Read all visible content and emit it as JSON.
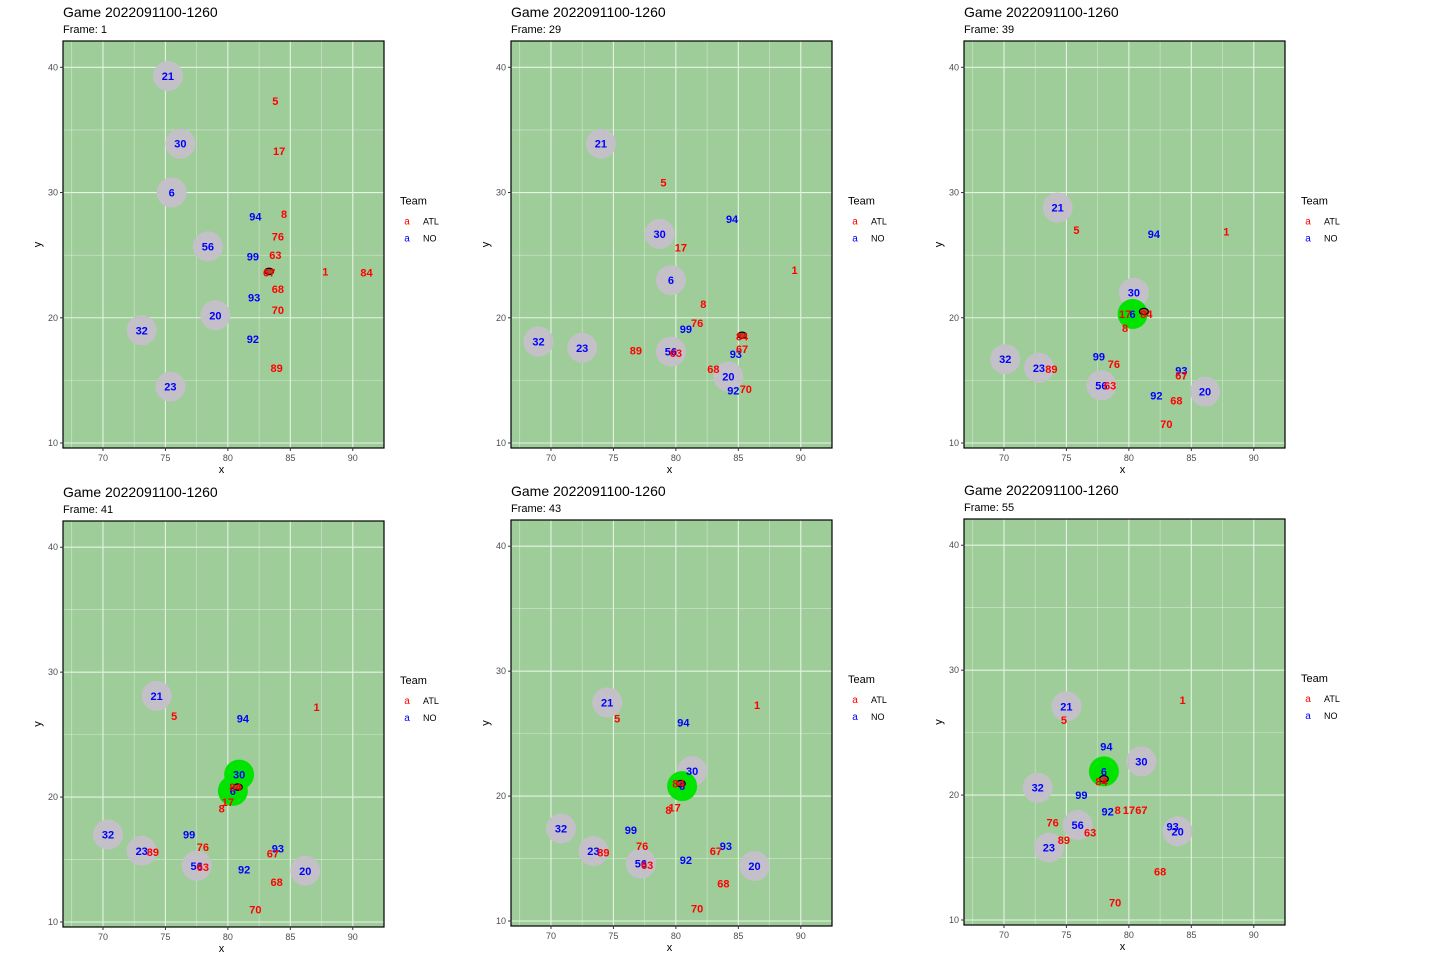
{
  "colors": {
    "field": "#9ecd9a",
    "grid": "#e6f2e4",
    "halo": "#c4c0c8",
    "carrier": "#00e400",
    "ATL": "#ff0000",
    "NO": "#0000ff",
    "ball": "#a0522d"
  },
  "chart_data": [
    {
      "type": "scatter",
      "title": "Game 2022091100-1260",
      "subtitle": "Frame: 1",
      "xlabel": "x",
      "ylabel": "y",
      "xlim": [
        66.8,
        92.5
      ],
      "ylim": [
        9.6,
        42.1
      ],
      "xticks": [
        70,
        75,
        80,
        85,
        90
      ],
      "yticks": [
        10,
        20,
        30,
        40
      ],
      "legend": {
        "title": "Team",
        "position": "right",
        "entries": [
          "ATL",
          "NO"
        ]
      },
      "ball": [
        83.3,
        23.7
      ],
      "players": [
        {
          "team": "NO",
          "jersey": "21",
          "x": 75.2,
          "y": 39.3,
          "halo": true
        },
        {
          "team": "NO",
          "jersey": "30",
          "x": 76.2,
          "y": 33.9,
          "halo": true
        },
        {
          "team": "NO",
          "jersey": "6",
          "x": 75.5,
          "y": 30.0,
          "halo": true
        },
        {
          "team": "NO",
          "jersey": "56",
          "x": 78.4,
          "y": 25.7,
          "halo": true
        },
        {
          "team": "NO",
          "jersey": "20",
          "x": 79.0,
          "y": 20.2,
          "halo": true
        },
        {
          "team": "NO",
          "jersey": "32",
          "x": 73.1,
          "y": 19.0,
          "halo": true
        },
        {
          "team": "NO",
          "jersey": "23",
          "x": 75.4,
          "y": 14.5,
          "halo": true
        },
        {
          "team": "NO",
          "jersey": "94",
          "x": 82.2,
          "y": 28.1
        },
        {
          "team": "NO",
          "jersey": "99",
          "x": 82.0,
          "y": 24.9
        },
        {
          "team": "NO",
          "jersey": "93",
          "x": 82.1,
          "y": 21.6
        },
        {
          "team": "NO",
          "jersey": "92",
          "x": 82.0,
          "y": 18.3
        },
        {
          "team": "ATL",
          "jersey": "5",
          "x": 83.8,
          "y": 37.3
        },
        {
          "team": "ATL",
          "jersey": "17",
          "x": 84.1,
          "y": 33.3
        },
        {
          "team": "ATL",
          "jersey": "8",
          "x": 84.5,
          "y": 28.3
        },
        {
          "team": "ATL",
          "jersey": "76",
          "x": 84.0,
          "y": 26.5
        },
        {
          "team": "ATL",
          "jersey": "63",
          "x": 83.8,
          "y": 25.0
        },
        {
          "team": "ATL",
          "jersey": "67",
          "x": 83.3,
          "y": 23.6
        },
        {
          "team": "ATL",
          "jersey": "68",
          "x": 84.0,
          "y": 22.3
        },
        {
          "team": "ATL",
          "jersey": "70",
          "x": 84.0,
          "y": 20.6
        },
        {
          "team": "ATL",
          "jersey": "89",
          "x": 83.9,
          "y": 16.0
        },
        {
          "team": "ATL",
          "jersey": "1",
          "x": 87.8,
          "y": 23.7
        },
        {
          "team": "ATL",
          "jersey": "84",
          "x": 91.1,
          "y": 23.6
        }
      ]
    },
    {
      "type": "scatter",
      "title": "Game 2022091100-1260",
      "subtitle": "Frame: 29",
      "xlabel": "x",
      "ylabel": "y",
      "xlim": [
        66.8,
        92.5
      ],
      "ylim": [
        9.6,
        42.1
      ],
      "xticks": [
        70,
        75,
        80,
        85,
        90
      ],
      "yticks": [
        10,
        20,
        30,
        40
      ],
      "legend": {
        "title": "Team",
        "position": "right",
        "entries": [
          "ATL",
          "NO"
        ]
      },
      "ball": [
        85.3,
        18.6
      ],
      "players": [
        {
          "team": "NO",
          "jersey": "21",
          "x": 74.0,
          "y": 33.9,
          "halo": true
        },
        {
          "team": "NO",
          "jersey": "30",
          "x": 78.7,
          "y": 26.7,
          "halo": true
        },
        {
          "team": "NO",
          "jersey": "6",
          "x": 79.6,
          "y": 23.0,
          "halo": true
        },
        {
          "team": "NO",
          "jersey": "32",
          "x": 69.0,
          "y": 18.1,
          "halo": true
        },
        {
          "team": "NO",
          "jersey": "23",
          "x": 72.5,
          "y": 17.6,
          "halo": true
        },
        {
          "team": "NO",
          "jersey": "56",
          "x": 79.6,
          "y": 17.3,
          "halo": true
        },
        {
          "team": "NO",
          "jersey": "20",
          "x": 84.2,
          "y": 15.3,
          "halo": true
        },
        {
          "team": "NO",
          "jersey": "94",
          "x": 84.5,
          "y": 27.9
        },
        {
          "team": "NO",
          "jersey": "99",
          "x": 80.8,
          "y": 19.1
        },
        {
          "team": "NO",
          "jersey": "93",
          "x": 84.8,
          "y": 17.1
        },
        {
          "team": "NO",
          "jersey": "92",
          "x": 84.6,
          "y": 14.2
        },
        {
          "team": "ATL",
          "jersey": "5",
          "x": 79.0,
          "y": 30.8
        },
        {
          "team": "ATL",
          "jersey": "17",
          "x": 80.4,
          "y": 25.6
        },
        {
          "team": "ATL",
          "jersey": "1",
          "x": 89.5,
          "y": 23.8
        },
        {
          "team": "ATL",
          "jersey": "8",
          "x": 82.2,
          "y": 21.1
        },
        {
          "team": "ATL",
          "jersey": "76",
          "x": 81.7,
          "y": 19.6
        },
        {
          "team": "ATL",
          "jersey": "84",
          "x": 85.3,
          "y": 18.5
        },
        {
          "team": "ATL",
          "jersey": "67",
          "x": 85.3,
          "y": 17.5
        },
        {
          "team": "ATL",
          "jersey": "89",
          "x": 76.8,
          "y": 17.4
        },
        {
          "team": "ATL",
          "jersey": "63",
          "x": 80.0,
          "y": 17.2
        },
        {
          "team": "ATL",
          "jersey": "68",
          "x": 83.0,
          "y": 15.9
        },
        {
          "team": "ATL",
          "jersey": "70",
          "x": 85.6,
          "y": 14.3
        }
      ]
    },
    {
      "type": "scatter",
      "title": "Game 2022091100-1260",
      "subtitle": "Frame: 39",
      "xlabel": "x",
      "ylabel": "y",
      "xlim": [
        66.8,
        92.5
      ],
      "ylim": [
        9.6,
        42.1
      ],
      "xticks": [
        70,
        75,
        80,
        85,
        90
      ],
      "yticks": [
        10,
        20,
        30,
        40
      ],
      "legend": {
        "title": "Team",
        "position": "right",
        "entries": [
          "ATL",
          "NO"
        ]
      },
      "ball": [
        81.2,
        20.5
      ],
      "players": [
        {
          "team": "NO",
          "jersey": "21",
          "x": 74.3,
          "y": 28.8,
          "halo": true
        },
        {
          "team": "NO",
          "jersey": "30",
          "x": 80.4,
          "y": 22.0,
          "halo": true
        },
        {
          "team": "NO",
          "jersey": "6",
          "x": 80.3,
          "y": 20.3,
          "halo": true,
          "carrier": true
        },
        {
          "team": "NO",
          "jersey": "32",
          "x": 70.1,
          "y": 16.7,
          "halo": true
        },
        {
          "team": "NO",
          "jersey": "23",
          "x": 72.8,
          "y": 16.0,
          "halo": true
        },
        {
          "team": "NO",
          "jersey": "56",
          "x": 77.8,
          "y": 14.6,
          "halo": true
        },
        {
          "team": "NO",
          "jersey": "20",
          "x": 86.1,
          "y": 14.1,
          "halo": true
        },
        {
          "team": "NO",
          "jersey": "94",
          "x": 82.0,
          "y": 26.7
        },
        {
          "team": "NO",
          "jersey": "99",
          "x": 77.6,
          "y": 16.9
        },
        {
          "team": "NO",
          "jersey": "93",
          "x": 84.2,
          "y": 15.8
        },
        {
          "team": "NO",
          "jersey": "92",
          "x": 82.2,
          "y": 13.8
        },
        {
          "team": "ATL",
          "jersey": "5",
          "x": 75.8,
          "y": 27.0
        },
        {
          "team": "ATL",
          "jersey": "1",
          "x": 87.8,
          "y": 26.9
        },
        {
          "team": "ATL",
          "jersey": "17",
          "x": 79.7,
          "y": 20.3
        },
        {
          "team": "ATL",
          "jersey": "84",
          "x": 81.4,
          "y": 20.3
        },
        {
          "team": "ATL",
          "jersey": "8",
          "x": 79.7,
          "y": 19.2
        },
        {
          "team": "ATL",
          "jersey": "76",
          "x": 78.8,
          "y": 16.3
        },
        {
          "team": "ATL",
          "jersey": "89",
          "x": 73.8,
          "y": 15.9
        },
        {
          "team": "ATL",
          "jersey": "67",
          "x": 84.2,
          "y": 15.4
        },
        {
          "team": "ATL",
          "jersey": "63",
          "x": 78.5,
          "y": 14.6
        },
        {
          "team": "ATL",
          "jersey": "68",
          "x": 83.8,
          "y": 13.4
        },
        {
          "team": "ATL",
          "jersey": "70",
          "x": 83.0,
          "y": 11.5
        }
      ]
    },
    {
      "type": "scatter",
      "title": "Game 2022091100-1260",
      "subtitle": "Frame: 41",
      "xlabel": "x",
      "ylabel": "y",
      "xlim": [
        66.8,
        92.5
      ],
      "ylim": [
        9.6,
        42.1
      ],
      "xticks": [
        70,
        75,
        80,
        85,
        90
      ],
      "yticks": [
        10,
        20,
        30,
        40
      ],
      "legend": {
        "title": "Team",
        "position": "right",
        "entries": [
          "ATL",
          "NO"
        ]
      },
      "ball": [
        80.8,
        20.8
      ],
      "players": [
        {
          "team": "NO",
          "jersey": "21",
          "x": 74.3,
          "y": 28.1,
          "halo": true
        },
        {
          "team": "NO",
          "jersey": "30",
          "x": 80.9,
          "y": 21.8,
          "halo": true,
          "carrier": true
        },
        {
          "team": "NO",
          "jersey": "6",
          "x": 80.4,
          "y": 20.5,
          "halo": true,
          "carrier": true
        },
        {
          "team": "NO",
          "jersey": "32",
          "x": 70.4,
          "y": 17.0,
          "halo": true
        },
        {
          "team": "NO",
          "jersey": "23",
          "x": 73.1,
          "y": 15.7,
          "halo": true
        },
        {
          "team": "NO",
          "jersey": "56",
          "x": 77.5,
          "y": 14.5,
          "halo": true
        },
        {
          "team": "NO",
          "jersey": "20",
          "x": 86.2,
          "y": 14.1,
          "halo": true
        },
        {
          "team": "NO",
          "jersey": "94",
          "x": 81.2,
          "y": 26.3
        },
        {
          "team": "NO",
          "jersey": "99",
          "x": 76.9,
          "y": 17.0
        },
        {
          "team": "NO",
          "jersey": "93",
          "x": 84.0,
          "y": 15.9
        },
        {
          "team": "NO",
          "jersey": "92",
          "x": 81.3,
          "y": 14.2
        },
        {
          "team": "ATL",
          "jersey": "5",
          "x": 75.7,
          "y": 26.5
        },
        {
          "team": "ATL",
          "jersey": "1",
          "x": 87.1,
          "y": 27.2
        },
        {
          "team": "ATL",
          "jersey": "84",
          "x": 80.6,
          "y": 20.8
        },
        {
          "team": "ATL",
          "jersey": "17",
          "x": 80.0,
          "y": 19.6
        },
        {
          "team": "ATL",
          "jersey": "8",
          "x": 79.5,
          "y": 19.1
        },
        {
          "team": "ATL",
          "jersey": "76",
          "x": 78.0,
          "y": 16.0
        },
        {
          "team": "ATL",
          "jersey": "89",
          "x": 74.0,
          "y": 15.6
        },
        {
          "team": "ATL",
          "jersey": "67",
          "x": 83.6,
          "y": 15.5
        },
        {
          "team": "ATL",
          "jersey": "63",
          "x": 78.0,
          "y": 14.4
        },
        {
          "team": "ATL",
          "jersey": "68",
          "x": 83.9,
          "y": 13.2
        },
        {
          "team": "ATL",
          "jersey": "70",
          "x": 82.2,
          "y": 11.0
        }
      ]
    },
    {
      "type": "scatter",
      "title": "Game 2022091100-1260",
      "subtitle": "Frame: 43",
      "xlabel": "x",
      "ylabel": "y",
      "xlim": [
        66.8,
        92.5
      ],
      "ylim": [
        9.6,
        42.1
      ],
      "xticks": [
        70,
        75,
        80,
        85,
        90
      ],
      "yticks": [
        10,
        20,
        30,
        40
      ],
      "legend": {
        "title": "Team",
        "position": "right",
        "entries": [
          "ATL",
          "NO"
        ]
      },
      "ball": [
        80.4,
        21.0
      ],
      "players": [
        {
          "team": "NO",
          "jersey": "21",
          "x": 74.5,
          "y": 27.5,
          "halo": true
        },
        {
          "team": "NO",
          "jersey": "30",
          "x": 81.3,
          "y": 22.0,
          "halo": true
        },
        {
          "team": "NO",
          "jersey": "6",
          "x": 80.5,
          "y": 20.8,
          "halo": true,
          "carrier": true
        },
        {
          "team": "NO",
          "jersey": "32",
          "x": 70.8,
          "y": 17.4,
          "halo": true
        },
        {
          "team": "NO",
          "jersey": "23",
          "x": 73.4,
          "y": 15.6,
          "halo": true
        },
        {
          "team": "NO",
          "jersey": "56",
          "x": 77.2,
          "y": 14.6,
          "halo": true
        },
        {
          "team": "NO",
          "jersey": "20",
          "x": 86.3,
          "y": 14.4,
          "halo": true
        },
        {
          "team": "NO",
          "jersey": "94",
          "x": 80.6,
          "y": 25.9
        },
        {
          "team": "NO",
          "jersey": "99",
          "x": 76.4,
          "y": 17.3
        },
        {
          "team": "NO",
          "jersey": "93",
          "x": 84.0,
          "y": 16.0
        },
        {
          "team": "NO",
          "jersey": "92",
          "x": 80.8,
          "y": 14.9
        },
        {
          "team": "ATL",
          "jersey": "5",
          "x": 75.3,
          "y": 26.2
        },
        {
          "team": "ATL",
          "jersey": "1",
          "x": 86.5,
          "y": 27.3
        },
        {
          "team": "ATL",
          "jersey": "84",
          "x": 80.2,
          "y": 21.0
        },
        {
          "team": "ATL",
          "jersey": "17",
          "x": 79.9,
          "y": 19.1
        },
        {
          "team": "ATL",
          "jersey": "8",
          "x": 79.4,
          "y": 18.9
        },
        {
          "team": "ATL",
          "jersey": "76",
          "x": 77.3,
          "y": 16.0
        },
        {
          "team": "ATL",
          "jersey": "89",
          "x": 74.2,
          "y": 15.5
        },
        {
          "team": "ATL",
          "jersey": "67",
          "x": 83.2,
          "y": 15.6
        },
        {
          "team": "ATL",
          "jersey": "63",
          "x": 77.7,
          "y": 14.5
        },
        {
          "team": "ATL",
          "jersey": "68",
          "x": 83.8,
          "y": 13.0
        },
        {
          "team": "ATL",
          "jersey": "70",
          "x": 81.7,
          "y": 11.0
        }
      ]
    },
    {
      "type": "scatter",
      "title": "Game 2022091100-1260",
      "subtitle": "Frame: 55",
      "xlabel": "x",
      "ylabel": "y",
      "xlim": [
        66.8,
        92.5
      ],
      "ylim": [
        9.6,
        42.1
      ],
      "xticks": [
        70,
        75,
        80,
        85,
        90
      ],
      "yticks": [
        10,
        20,
        30,
        40
      ],
      "legend": {
        "title": "Team",
        "position": "right",
        "entries": [
          "ATL",
          "NO"
        ]
      },
      "ball": [
        78.0,
        21.3
      ],
      "players": [
        {
          "team": "NO",
          "jersey": "21",
          "x": 75.0,
          "y": 27.1,
          "halo": true
        },
        {
          "team": "NO",
          "jersey": "30",
          "x": 81.0,
          "y": 22.7,
          "halo": true
        },
        {
          "team": "NO",
          "jersey": "6",
          "x": 78.0,
          "y": 21.9,
          "halo": true,
          "carrier": true
        },
        {
          "team": "NO",
          "jersey": "32",
          "x": 72.7,
          "y": 20.6,
          "halo": true
        },
        {
          "team": "NO",
          "jersey": "56",
          "x": 75.9,
          "y": 17.6,
          "halo": true
        },
        {
          "team": "NO",
          "jersey": "23",
          "x": 73.6,
          "y": 15.8,
          "halo": true
        },
        {
          "team": "NO",
          "jersey": "20",
          "x": 83.9,
          "y": 17.1,
          "halo": true
        },
        {
          "team": "NO",
          "jersey": "94",
          "x": 78.2,
          "y": 23.9
        },
        {
          "team": "NO",
          "jersey": "99",
          "x": 76.2,
          "y": 20.0
        },
        {
          "team": "NO",
          "jersey": "92",
          "x": 78.3,
          "y": 18.7
        },
        {
          "team": "NO",
          "jersey": "93",
          "x": 83.5,
          "y": 17.5
        },
        {
          "team": "ATL",
          "jersey": "5",
          "x": 74.8,
          "y": 26.0
        },
        {
          "team": "ATL",
          "jersey": "1",
          "x": 84.3,
          "y": 27.6
        },
        {
          "team": "ATL",
          "jersey": "84",
          "x": 77.8,
          "y": 21.1
        },
        {
          "team": "ATL",
          "jersey": "8",
          "x": 79.1,
          "y": 18.8
        },
        {
          "team": "ATL",
          "jersey": "17",
          "x": 80.0,
          "y": 18.8
        },
        {
          "team": "ATL",
          "jersey": "67",
          "x": 81.0,
          "y": 18.8
        },
        {
          "team": "ATL",
          "jersey": "76",
          "x": 73.9,
          "y": 17.8
        },
        {
          "team": "ATL",
          "jersey": "63",
          "x": 76.9,
          "y": 17.0
        },
        {
          "team": "ATL",
          "jersey": "89",
          "x": 74.8,
          "y": 16.4
        },
        {
          "team": "ATL",
          "jersey": "68",
          "x": 82.5,
          "y": 13.9
        },
        {
          "team": "ATL",
          "jersey": "70",
          "x": 78.9,
          "y": 11.4
        }
      ]
    }
  ]
}
